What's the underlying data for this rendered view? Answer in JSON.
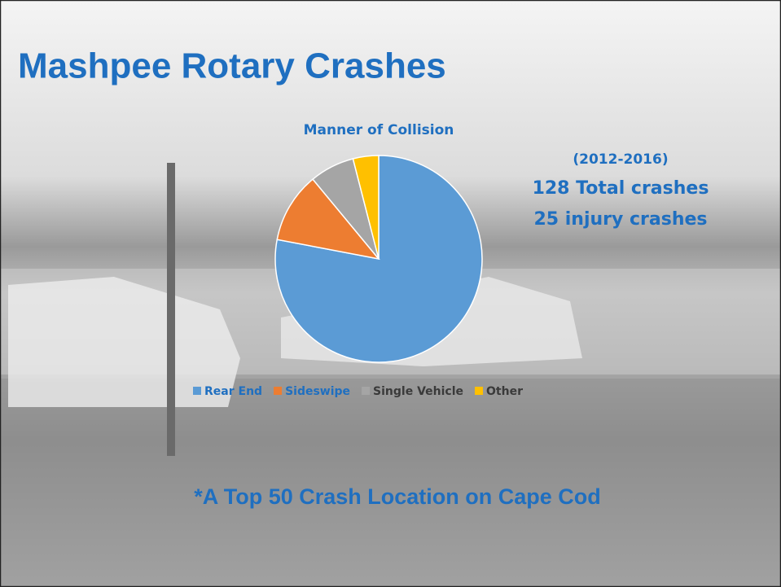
{
  "title": "Mashpee Rotary Crashes",
  "chart_data": {
    "type": "pie",
    "title": "Manner of Collision",
    "categories": [
      "Rear End",
      "Sideswipe",
      "Single Vehicle",
      "Other"
    ],
    "values": [
      78,
      11,
      7,
      4
    ],
    "colors": [
      "#5b9bd5",
      "#ed7d31",
      "#a5a5a5",
      "#ffc000"
    ]
  },
  "annotations": [
    "(2012-2016)",
    "128 Total crashes",
    "25 injury crashes"
  ],
  "footnote": "*A Top 50 Crash Location on Cape Cod"
}
